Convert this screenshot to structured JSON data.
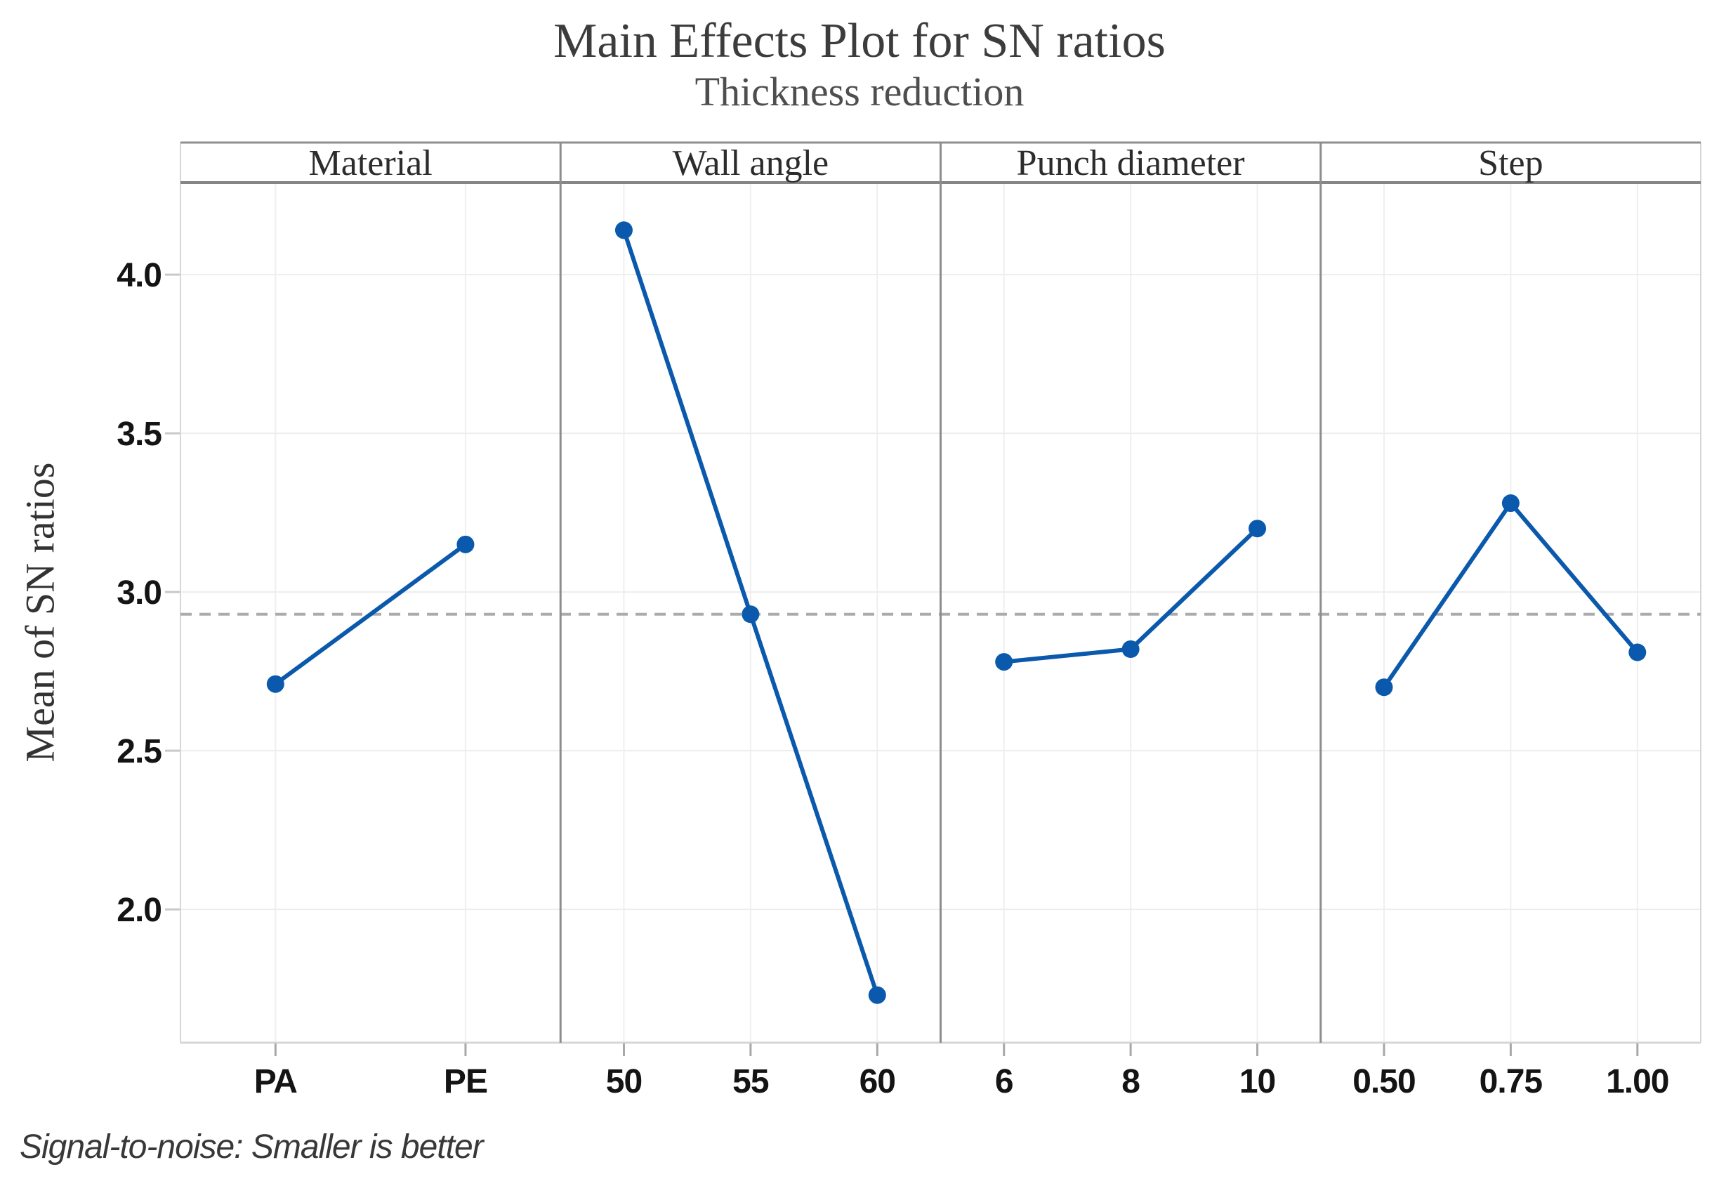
{
  "chart_data": {
    "type": "line",
    "title": "Main Effects Plot for SN ratios",
    "subtitle": "Thickness reduction",
    "ylabel": "Mean of SN ratios",
    "footnote": "Signal-to-noise: Smaller is better",
    "ylim": [
      1.58,
      4.29
    ],
    "yticks": [
      2.0,
      2.5,
      3.0,
      3.5,
      4.0
    ],
    "ytick_labels": [
      "2.0",
      "2.5",
      "3.0",
      "3.5",
      "4.0"
    ],
    "grand_mean_reference": 2.93,
    "grid": true,
    "legend": "none",
    "panels": [
      {
        "label": "Material",
        "categories": [
          "PA",
          "PE"
        ],
        "values": [
          2.71,
          3.15
        ]
      },
      {
        "label": "Wall angle",
        "categories": [
          "50",
          "55",
          "60"
        ],
        "values": [
          4.14,
          2.93,
          1.73
        ]
      },
      {
        "label": "Punch diameter",
        "categories": [
          "6",
          "8",
          "10"
        ],
        "values": [
          2.78,
          2.82,
          3.2
        ]
      },
      {
        "label": "Step",
        "categories": [
          "0.50",
          "0.75",
          "1.00"
        ],
        "values": [
          2.7,
          3.28,
          2.81
        ]
      }
    ]
  },
  "colors": {
    "series_blue": "#0a59ac",
    "h_gridline": "#ededed",
    "v_gridline": "#efefef",
    "plot_border": "#d6d6d6",
    "header_line_top": "#8f8f8f",
    "header_line_bottom": "#858585",
    "panel_divider": "#8d8d8d",
    "y_tick_mark": "#c9c9c9",
    "x_tick_mark": "#a8a8a8",
    "mean_line": "#ababab"
  }
}
